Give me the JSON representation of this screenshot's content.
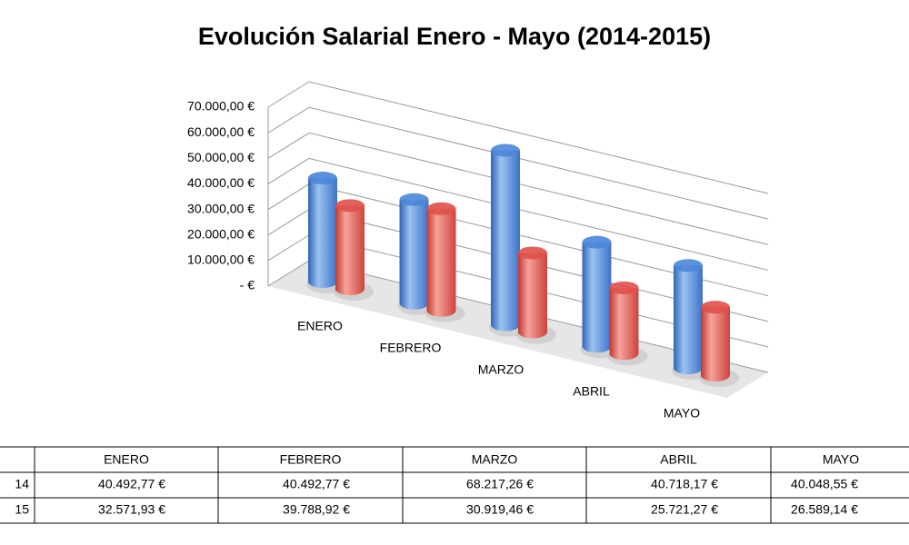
{
  "chart_data": {
    "type": "bar3d",
    "title": "Evolución Salarial Enero - Mayo (2014-2015)",
    "categories": [
      "ENERO",
      "FEBRERO",
      "MARZO",
      "ABRIL",
      "MAYO"
    ],
    "series": [
      {
        "name": "14",
        "color": "#4a86d8",
        "values": [
          40492.77,
          40492.77,
          68217.26,
          40718.17,
          40048.55
        ],
        "value_labels": [
          "40.492,77 €",
          "40.492,77 €",
          "68.217,26 €",
          "40.718,17 €",
          "40.048,55 €"
        ]
      },
      {
        "name": "15",
        "color": "#e0504a",
        "values": [
          32571.93,
          39788.92,
          30919.46,
          25721.27,
          26589.14
        ],
        "value_labels": [
          "32.571,93 €",
          "39.788,92 €",
          "30.919,46 €",
          "25.721,27 €",
          "26.589,14 €"
        ]
      }
    ],
    "ylim": [
      0,
      70000
    ],
    "yticks": [
      {
        "value": 0,
        "label": "-  €"
      },
      {
        "value": 10000,
        "label": "10.000,00 €"
      },
      {
        "value": 20000,
        "label": "20.000,00 €"
      },
      {
        "value": 30000,
        "label": "30.000,00 €"
      },
      {
        "value": 40000,
        "label": "40.000,00 €"
      },
      {
        "value": 50000,
        "label": "50.000,00 €"
      },
      {
        "value": 60000,
        "label": "60.000,00 €"
      },
      {
        "value": 70000,
        "label": "70.000,00 €"
      }
    ],
    "grid": true
  }
}
